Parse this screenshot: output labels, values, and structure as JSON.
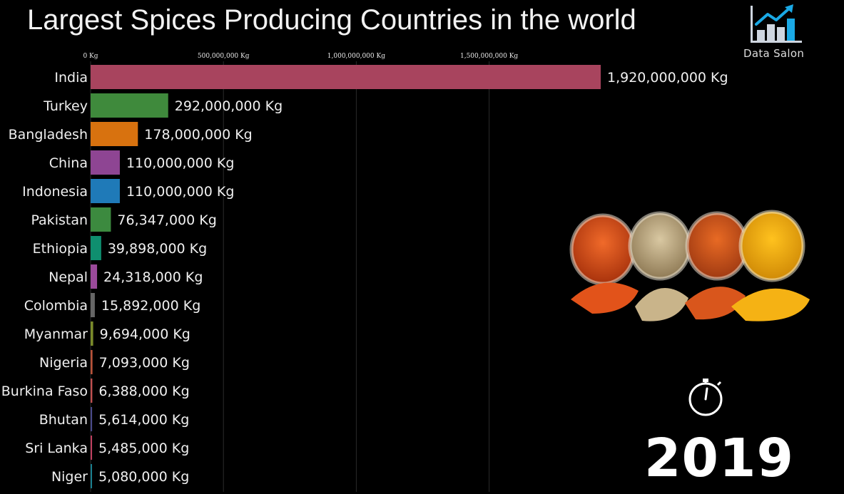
{
  "title": "Largest Spices Producing Countries in the world",
  "brand": {
    "name": "Data Salon",
    "icon": "bar-chart-trend-icon"
  },
  "year": "2019",
  "decor": {
    "stopwatch_icon": "stopwatch-icon",
    "image": "spice-jars-image"
  },
  "chart_data": {
    "type": "bar",
    "orientation": "horizontal",
    "title": "Largest Spices Producing Countries in the world",
    "unit": "Kg",
    "xlim": [
      0,
      1920000000
    ],
    "xticks": [
      0,
      500000000,
      1000000000,
      1500000000
    ],
    "xtick_labels": [
      "0 Kg",
      "500,000,000 Kg",
      "1,000,000,000 Kg",
      "1,500,000,000 Kg"
    ],
    "grid": true,
    "categories": [
      "India",
      "Turkey",
      "Bangladesh",
      "China",
      "Indonesia",
      "Pakistan",
      "Ethiopia",
      "Nepal",
      "Colombia",
      "Myanmar",
      "Nigeria",
      "Burkina Faso",
      "Bhutan",
      "Sri Lanka",
      "Niger"
    ],
    "values": [
      1920000000,
      292000000,
      178000000,
      110000000,
      110000000,
      76347000,
      39898000,
      24318000,
      15892000,
      9694000,
      7093000,
      6388000,
      5614000,
      5485000,
      5080000
    ],
    "value_labels": [
      "1,920,000,000 Kg",
      "292,000,000 Kg",
      "178,000,000 Kg",
      "110,000,000 Kg",
      "110,000,000 Kg",
      "76,347,000 Kg",
      "39,898,000 Kg",
      "24,318,000 Kg",
      "15,892,000 Kg",
      "9,694,000 Kg",
      "7,093,000 Kg",
      "6,388,000 Kg",
      "5,614,000 Kg",
      "5,485,000 Kg",
      "5,080,000 Kg"
    ],
    "colors": [
      "#a8445e",
      "#3f8a3c",
      "#d8720f",
      "#8e4593",
      "#1f7ab8",
      "#3c8a3f",
      "#0f8f6f",
      "#9a4a9a",
      "#666666",
      "#7a8a2a",
      "#b8533a",
      "#c05050",
      "#4a4a8a",
      "#c04060",
      "#1a7f8f"
    ]
  }
}
